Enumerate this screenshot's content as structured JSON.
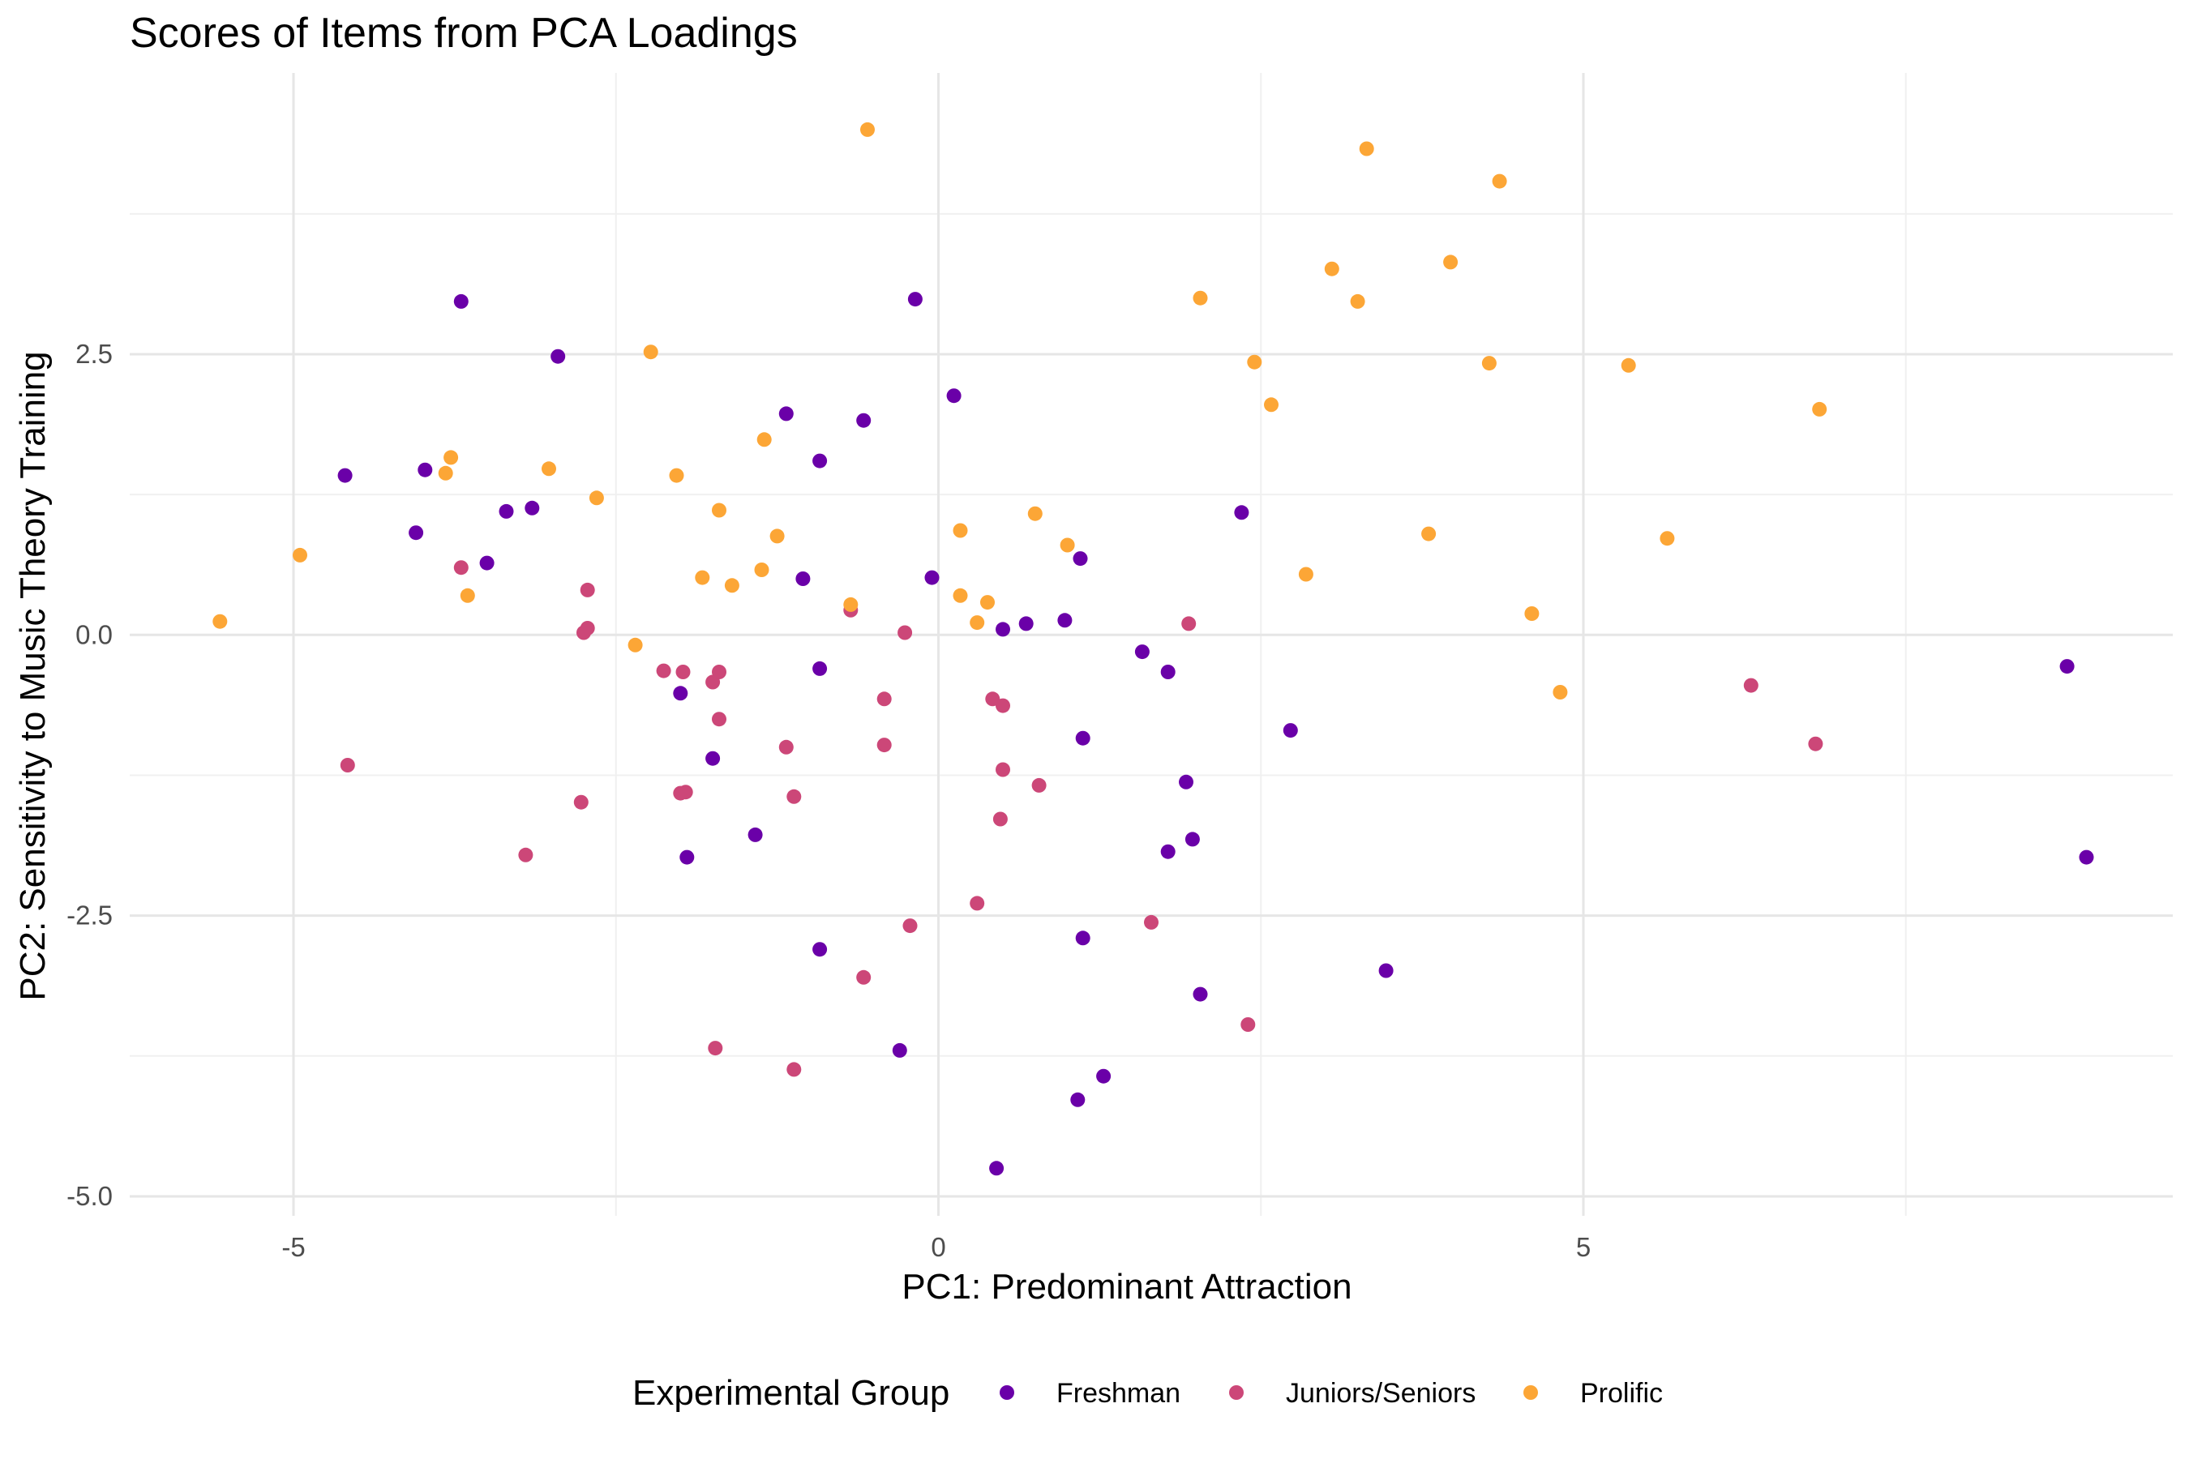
{
  "chart_data": {
    "type": "scatter",
    "title": "Scores of Items from PCA Loadings",
    "xlabel": "PC1: Predominant Attraction",
    "ylabel": "PC2: Sensitivity to Music Theory Training",
    "xlim": [
      -6.25,
      9.5
    ],
    "ylim": [
      -5.2,
      4.9
    ],
    "x_ticks": [
      -5,
      0,
      5
    ],
    "x_tick_labels": [
      "-5",
      "0",
      "5"
    ],
    "y_ticks": [
      -5.0,
      -2.5,
      0.0,
      2.5
    ],
    "y_tick_labels": [
      "-5.0",
      "-2.5",
      "0.0",
      "2.5"
    ],
    "grid": true,
    "legend": {
      "title": "Experimental Group",
      "position": "bottom"
    },
    "series": [
      {
        "name": "Freshman",
        "color": "#6a00a8",
        "points": [
          [
            -3.7,
            2.97
          ],
          [
            -2.95,
            2.48
          ],
          [
            -4.6,
            1.42
          ],
          [
            -3.98,
            1.47
          ],
          [
            -4.05,
            0.91
          ],
          [
            -3.35,
            1.1
          ],
          [
            -3.15,
            1.13
          ],
          [
            -3.5,
            0.64
          ],
          [
            -2.0,
            -0.52
          ],
          [
            -1.75,
            -1.1
          ],
          [
            -1.95,
            -1.98
          ],
          [
            -1.42,
            -1.78
          ],
          [
            -1.18,
            1.97
          ],
          [
            -0.92,
            1.55
          ],
          [
            -1.05,
            0.5
          ],
          [
            -0.92,
            -0.3
          ],
          [
            -0.58,
            1.91
          ],
          [
            -0.18,
            2.99
          ],
          [
            -0.05,
            0.51
          ],
          [
            0.12,
            2.13
          ],
          [
            0.5,
            0.05
          ],
          [
            0.68,
            0.1
          ],
          [
            0.98,
            0.13
          ],
          [
            1.1,
            0.68
          ],
          [
            1.58,
            -0.15
          ],
          [
            1.78,
            -0.33
          ],
          [
            1.12,
            -0.92
          ],
          [
            1.92,
            -1.31
          ],
          [
            1.97,
            -1.82
          ],
          [
            1.78,
            -1.93
          ],
          [
            2.35,
            1.09
          ],
          [
            2.73,
            -0.85
          ],
          [
            -0.92,
            -2.8
          ],
          [
            -0.3,
            -3.7
          ],
          [
            1.12,
            -2.7
          ],
          [
            1.28,
            -3.93
          ],
          [
            1.08,
            -4.14
          ],
          [
            0.45,
            -4.75
          ],
          [
            2.03,
            -3.2
          ],
          [
            3.47,
            -2.99
          ],
          [
            8.75,
            -0.28
          ],
          [
            8.9,
            -1.98
          ]
        ]
      },
      {
        "name": "Juniors/Seniors",
        "color": "#cc4778",
        "points": [
          [
            -4.58,
            -1.16
          ],
          [
            -3.7,
            0.6
          ],
          [
            -2.72,
            0.4
          ],
          [
            -2.75,
            0.02
          ],
          [
            -2.72,
            0.06
          ],
          [
            -2.77,
            -1.49
          ],
          [
            -3.2,
            -1.96
          ],
          [
            -2.13,
            -0.32
          ],
          [
            -1.98,
            -0.33
          ],
          [
            -1.75,
            -0.42
          ],
          [
            -1.7,
            -0.33
          ],
          [
            -1.7,
            -0.75
          ],
          [
            -2.0,
            -1.41
          ],
          [
            -1.96,
            -1.4
          ],
          [
            -1.18,
            -1.0
          ],
          [
            -1.12,
            -1.44
          ],
          [
            -1.73,
            -3.68
          ],
          [
            -1.12,
            -3.87
          ],
          [
            -0.68,
            0.22
          ],
          [
            -0.26,
            0.02
          ],
          [
            -0.42,
            -0.57
          ],
          [
            -0.42,
            -0.98
          ],
          [
            -0.22,
            -2.59
          ],
          [
            -0.58,
            -3.05
          ],
          [
            0.42,
            -0.57
          ],
          [
            0.5,
            -0.63
          ],
          [
            0.5,
            -1.2
          ],
          [
            0.48,
            -1.64
          ],
          [
            0.78,
            -1.34
          ],
          [
            0.3,
            -2.39
          ],
          [
            1.65,
            -2.56
          ],
          [
            1.94,
            0.1
          ],
          [
            2.4,
            -3.47
          ],
          [
            6.3,
            -0.45
          ],
          [
            6.8,
            -0.97
          ]
        ]
      },
      {
        "name": "Prolific",
        "color": "#fca636",
        "points": [
          [
            -5.57,
            0.12
          ],
          [
            -4.95,
            0.71
          ],
          [
            -3.78,
            1.58
          ],
          [
            -3.82,
            1.44
          ],
          [
            -3.65,
            0.35
          ],
          [
            -3.02,
            1.48
          ],
          [
            -2.65,
            1.22
          ],
          [
            -2.23,
            2.52
          ],
          [
            -2.35,
            -0.09
          ],
          [
            -2.03,
            1.42
          ],
          [
            -1.7,
            1.11
          ],
          [
            -1.83,
            0.51
          ],
          [
            -1.6,
            0.44
          ],
          [
            -1.35,
            1.74
          ],
          [
            -1.37,
            0.58
          ],
          [
            -1.25,
            0.88
          ],
          [
            -0.68,
            0.27
          ],
          [
            -0.55,
            4.5
          ],
          [
            0.17,
            0.93
          ],
          [
            0.17,
            0.35
          ],
          [
            0.3,
            0.11
          ],
          [
            0.38,
            0.29
          ],
          [
            0.75,
            1.08
          ],
          [
            1.0,
            0.8
          ],
          [
            2.03,
            3.0
          ],
          [
            2.45,
            2.43
          ],
          [
            2.58,
            2.05
          ],
          [
            2.85,
            0.54
          ],
          [
            3.05,
            3.26
          ],
          [
            3.25,
            2.97
          ],
          [
            3.32,
            4.33
          ],
          [
            3.8,
            0.9
          ],
          [
            3.97,
            3.32
          ],
          [
            4.27,
            2.42
          ],
          [
            4.35,
            4.04
          ],
          [
            4.6,
            0.19
          ],
          [
            4.82,
            -0.51
          ],
          [
            5.35,
            2.4
          ],
          [
            5.65,
            0.86
          ],
          [
            6.83,
            2.01
          ]
        ]
      }
    ]
  }
}
